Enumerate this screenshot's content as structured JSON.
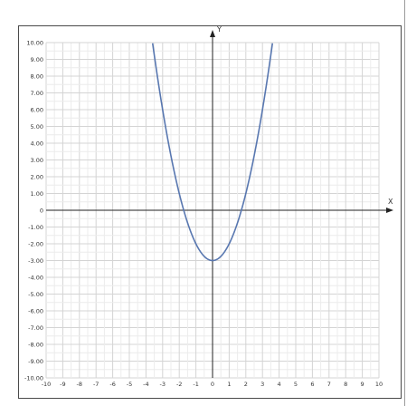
{
  "chart_data": {
    "type": "line",
    "function": "y = x^2 - 3",
    "coefficients": {
      "a": 1,
      "b": 0,
      "c": -3
    },
    "xlim": [
      -10,
      10
    ],
    "ylim": [
      -10,
      10
    ],
    "xlabel": "X",
    "ylabel": "Y",
    "grid": true,
    "x_ticks": [
      "-10",
      "-9",
      "-8",
      "-7",
      "-6",
      "-5",
      "-4",
      "-3",
      "-2",
      "-1",
      "0",
      "1",
      "2",
      "3",
      "4",
      "5",
      "6",
      "7",
      "8",
      "9",
      "10"
    ],
    "y_ticks": [
      "10.00",
      "9.00",
      "8.00",
      "7.00",
      "6.00",
      "5.00",
      "4.00",
      "3.00",
      "2.00",
      "1.00",
      "0",
      "-1.00",
      "-2.00",
      "-3.00",
      "-4.00",
      "-5.00",
      "-6.00",
      "-7.00",
      "-8.00",
      "-9.00",
      "-10.00"
    ],
    "series": [
      {
        "color": "#5877b0",
        "x": [
          -3.6,
          -3,
          -2.5,
          -2,
          -1.5,
          -1,
          -0.5,
          0,
          0.5,
          1,
          1.5,
          2,
          2.5,
          3,
          3.6
        ],
        "y": [
          9.96,
          6,
          3.25,
          1,
          -0.75,
          -2,
          -2.75,
          -3,
          -2.75,
          -2,
          -0.75,
          1,
          3.25,
          6,
          9.96
        ]
      }
    ]
  }
}
